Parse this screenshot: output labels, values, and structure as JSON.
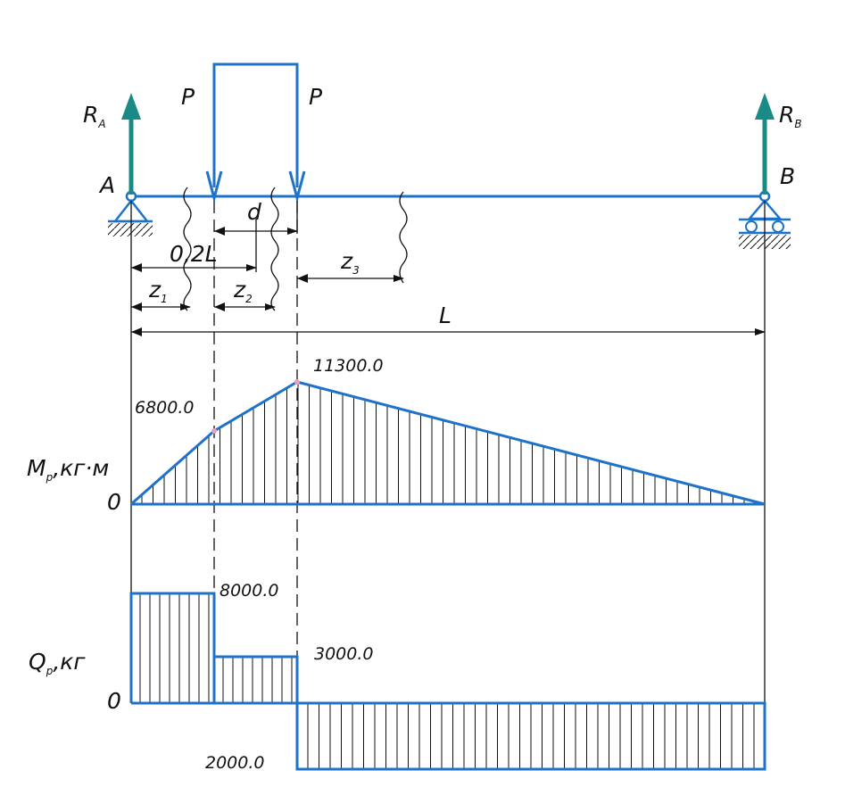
{
  "diagram": {
    "labels": {
      "ra": "R",
      "ra_sub": "A",
      "rb": "R",
      "rb_sub": "B",
      "p_left": "P",
      "p_right": "P",
      "a": "A",
      "b": "B",
      "d": "d",
      "dim_02l": "0,2L",
      "z1": "z",
      "z1_sub": "1",
      "z2": "z",
      "z2_sub": "2",
      "z3": "z",
      "z3_sub": "3",
      "span": "L"
    },
    "moment": {
      "axis_label": "M",
      "axis_sub": "p",
      "axis_unit": ",кг·м",
      "zero": "0",
      "value_left": "6800.0",
      "value_peak": "11300.0"
    },
    "shear": {
      "axis_label": "Q",
      "axis_sub": "р",
      "axis_unit": ",кг",
      "zero": "0",
      "value_1": "8000.0",
      "value_2": "3000.0",
      "value_3": "2000.0"
    },
    "colors": {
      "beam": "#1e73c9",
      "reaction": "#1a8a86",
      "line": "#111111"
    }
  }
}
